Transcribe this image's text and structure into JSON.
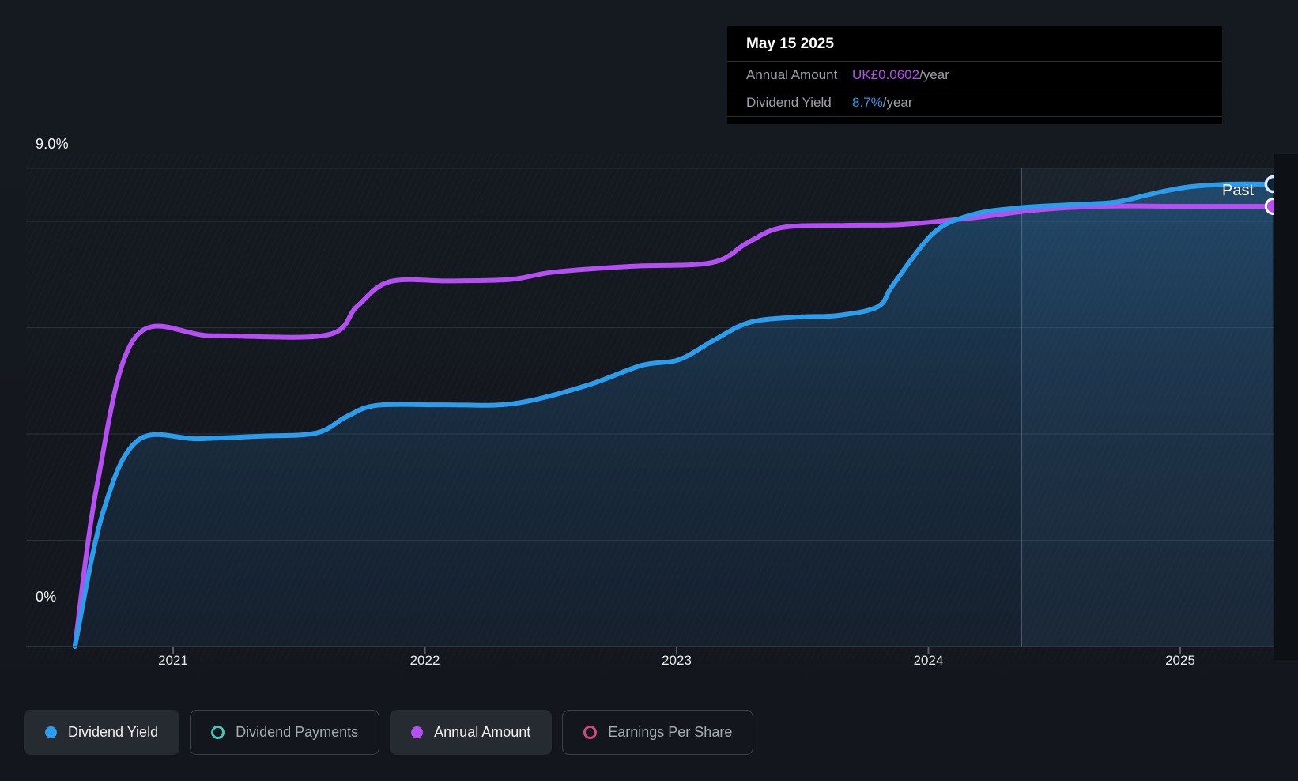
{
  "tooltip": {
    "date": "May 15 2025",
    "rows": [
      {
        "label": "Annual Amount",
        "value": "UK£0.0602",
        "suffix": "/year",
        "color": "#B44FF2"
      },
      {
        "label": "Dividend Yield",
        "value": "8.7%",
        "suffix": "/year",
        "color": "#2E9CF0"
      }
    ]
  },
  "axis": {
    "y_top_label": "9.0%",
    "y_bottom_label": "0%",
    "x_ticks": [
      "2021",
      "2022",
      "2023",
      "2024",
      "2025"
    ]
  },
  "past_label": "Past",
  "legend": [
    {
      "label": "Dividend Yield",
      "style": "filled",
      "color": "#2D9CEB",
      "active": true
    },
    {
      "label": "Dividend Payments",
      "style": "outline",
      "color": "#45C4B2",
      "active": false
    },
    {
      "label": "Annual Amount",
      "style": "filled",
      "color": "#B44FF2",
      "active": true
    },
    {
      "label": "Earnings Per Share",
      "style": "outline",
      "color": "#D1477F",
      "active": false
    }
  ],
  "colors": {
    "yield_line": "#2D9CEB",
    "amount_line": "#B44FF2",
    "background": "#14181E",
    "tooltip_bg": "#000000",
    "grid": "#2C323B",
    "past_region": "rgba(130,180,235,0.06)",
    "past_divider": "rgba(160,200,245,0.30)"
  },
  "chart_data": {
    "type": "area",
    "x_range": [
      2020.61,
      2025.37
    ],
    "x_tick_years": [
      2021,
      2022,
      2023,
      2024,
      2025
    ],
    "y_axis": {
      "name": "Dividend Yield",
      "unit": "%",
      "min": 0,
      "max": 9.0,
      "gridline_values": [
        9,
        8,
        6,
        4,
        2
      ]
    },
    "y2_axis": {
      "name": "Annual Amount",
      "unit": "UK£/year",
      "min": 0,
      "max": 0.0602
    },
    "grid": "horizontal-only",
    "legend_position": "bottom",
    "hover_date": "May 15 2025",
    "past_region_start": 2024.37,
    "series": [
      {
        "name": "Dividend Yield",
        "unit": "%",
        "color": "#2D9CEB",
        "fill": true,
        "points": [
          [
            2020.61,
            0
          ],
          [
            2020.72,
            2.5
          ],
          [
            2020.86,
            3.88
          ],
          [
            2021.1,
            3.91
          ],
          [
            2021.35,
            3.96
          ],
          [
            2021.57,
            4.02
          ],
          [
            2021.69,
            4.33
          ],
          [
            2021.81,
            4.54
          ],
          [
            2022.07,
            4.55
          ],
          [
            2022.35,
            4.57
          ],
          [
            2022.64,
            4.91
          ],
          [
            2022.86,
            5.29
          ],
          [
            2023.01,
            5.4
          ],
          [
            2023.15,
            5.77
          ],
          [
            2023.29,
            6.1
          ],
          [
            2023.48,
            6.2
          ],
          [
            2023.64,
            6.23
          ],
          [
            2023.8,
            6.4
          ],
          [
            2023.86,
            6.81
          ],
          [
            2024.02,
            7.78
          ],
          [
            2024.17,
            8.12
          ],
          [
            2024.35,
            8.25
          ],
          [
            2024.55,
            8.31
          ],
          [
            2024.74,
            8.36
          ],
          [
            2024.88,
            8.51
          ],
          [
            2025.02,
            8.64
          ],
          [
            2025.19,
            8.7
          ],
          [
            2025.37,
            8.7
          ]
        ]
      },
      {
        "name": "Annual Amount",
        "unit": "UK£",
        "color": "#B44FF2",
        "fill": false,
        "points": [
          [
            2020.61,
            0
          ],
          [
            2020.7,
            0.0225
          ],
          [
            2020.85,
            0.0423
          ],
          [
            2021.16,
            0.0425
          ],
          [
            2021.61,
            0.0426
          ],
          [
            2021.73,
            0.0465
          ],
          [
            2021.86,
            0.0499
          ],
          [
            2022.1,
            0.05
          ],
          [
            2022.34,
            0.0502
          ],
          [
            2022.51,
            0.0512
          ],
          [
            2022.82,
            0.052
          ],
          [
            2023.14,
            0.0525
          ],
          [
            2023.28,
            0.0552
          ],
          [
            2023.42,
            0.0573
          ],
          [
            2023.67,
            0.0576
          ],
          [
            2023.89,
            0.0577
          ],
          [
            2024.17,
            0.0586
          ],
          [
            2024.43,
            0.0597
          ],
          [
            2024.69,
            0.0602
          ],
          [
            2025.02,
            0.0602
          ],
          [
            2025.37,
            0.0602
          ]
        ]
      }
    ],
    "end_markers": {
      "dividend_yield_pct": 8.7,
      "annual_amount_gbp": 0.0602
    }
  }
}
